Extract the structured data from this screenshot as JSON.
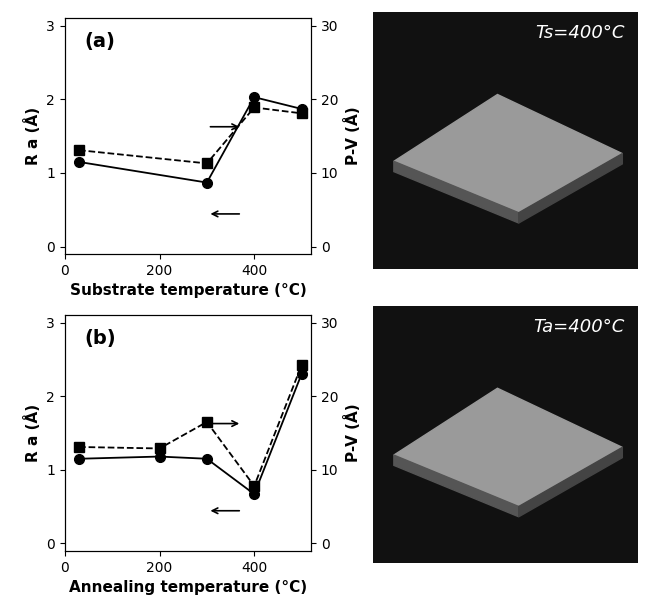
{
  "chart_data": [
    {
      "type": "line",
      "title": "(a)",
      "x_label": "Substrate temperature (°C)",
      "y_label": "R a (Å)",
      "y2_label": "P-V (Å)",
      "x": [
        30,
        300,
        400,
        500
      ],
      "series": [
        {
          "name": "R a",
          "color": "#000000",
          "marker": "circle",
          "line_style": "solid",
          "values": [
            1.15,
            0.87,
            2.03,
            1.87
          ]
        },
        {
          "name": "P-V",
          "color": "#000000",
          "marker": "square",
          "line_style": "dashed",
          "axis": "y2",
          "values": [
            13.1,
            11.3,
            18.9,
            18.1
          ]
        }
      ],
      "xlim": [
        0,
        520
      ],
      "xticks": [
        0,
        200,
        400
      ],
      "ylim": [
        -0.1,
        3.1
      ],
      "yticks": [
        0,
        1,
        2,
        3
      ],
      "y2lim": [
        -1,
        31
      ],
      "y2ticks": [
        0,
        10,
        20,
        30
      ]
    },
    {
      "type": "line",
      "title": "(b)",
      "x_label": "Annealing temperature (°C)",
      "y_label": "R a (Å)",
      "y2_label": "P-V (Å)",
      "x": [
        30,
        200,
        300,
        400,
        500
      ],
      "series": [
        {
          "name": "R a",
          "color": "#000000",
          "marker": "circle",
          "line_style": "solid",
          "values": [
            1.15,
            1.18,
            1.15,
            0.67,
            2.3
          ]
        },
        {
          "name": "P-V",
          "color": "#000000",
          "marker": "square",
          "line_style": "dashed",
          "axis": "y2",
          "values": [
            13.1,
            12.9,
            16.5,
            7.8,
            24.2
          ]
        }
      ],
      "xlim": [
        0,
        520
      ],
      "xticks": [
        0,
        200,
        400
      ],
      "ylim": [
        -0.1,
        3.1
      ],
      "yticks": [
        0,
        1,
        2,
        3
      ],
      "y2lim": [
        -1,
        31
      ],
      "y2ticks": [
        0,
        10,
        20,
        30
      ]
    }
  ],
  "images": [
    {
      "label": "Ts=400°C"
    },
    {
      "label": "Ta=400°C"
    }
  ]
}
